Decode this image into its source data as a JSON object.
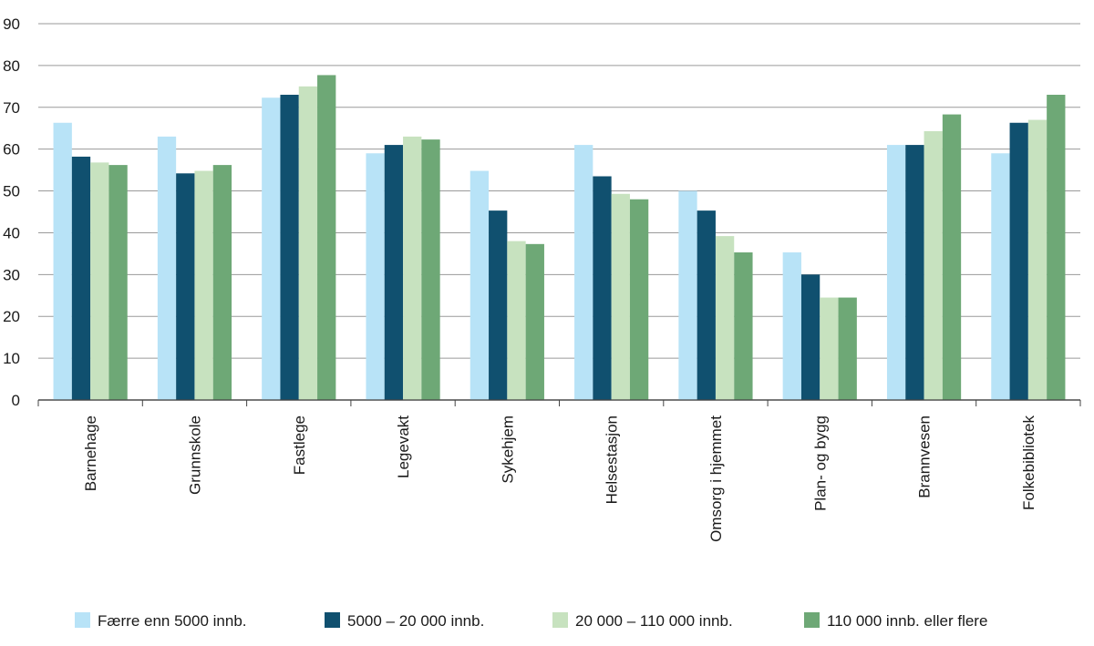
{
  "chart_data": {
    "type": "bar",
    "categories": [
      "Barnehage",
      "Grunnskole",
      "Fastlege",
      "Legevakt",
      "Sykehjem",
      "Helsestasjon",
      "Omsorg i hjemmet",
      "Plan- og bygg",
      "Brannvesen",
      "Folkebibliotek"
    ],
    "series": [
      {
        "name": "Færre enn 5000 innb.",
        "color": "#b8e3f7",
        "values": [
          66.3,
          63.0,
          72.3,
          59.0,
          54.8,
          61.0,
          50.0,
          35.3,
          61.0,
          59.0
        ]
      },
      {
        "name": "5000 – 20 000 innb.",
        "color": "#10506f",
        "values": [
          58.2,
          54.2,
          73.0,
          61.0,
          45.3,
          53.5,
          45.3,
          30.0,
          61.0,
          66.3
        ]
      },
      {
        "name": "20 000 – 110 000 innb.",
        "color": "#c7e2bf",
        "values": [
          56.8,
          54.8,
          75.0,
          63.0,
          38.0,
          49.3,
          39.2,
          24.5,
          64.3,
          67.0
        ]
      },
      {
        "name": "110 000 innb. eller flere",
        "color": "#6ea876",
        "values": [
          56.2,
          56.2,
          77.7,
          62.3,
          37.3,
          48.0,
          35.3,
          24.5,
          68.3,
          73.0
        ]
      }
    ],
    "yticks": [
      0,
      10,
      20,
      30,
      40,
      50,
      60,
      70,
      80,
      90
    ],
    "ylim": [
      0,
      90
    ],
    "grid": true,
    "legend_position": "bottom"
  }
}
